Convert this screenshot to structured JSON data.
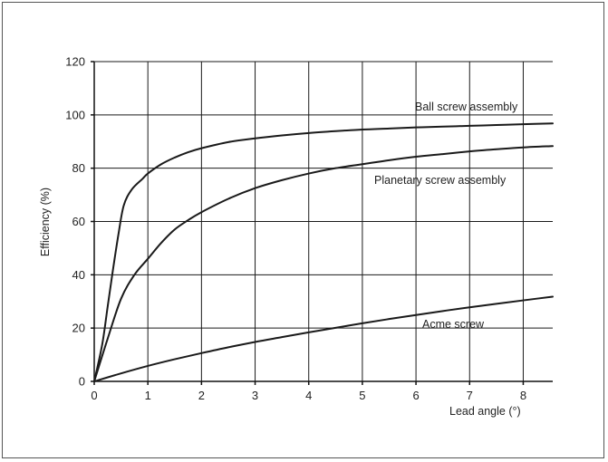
{
  "chart_data": {
    "type": "line",
    "title": "",
    "xlabel": "Lead angle (°)",
    "ylabel": "Efficiency (%)",
    "xlim": [
      0,
      8.55
    ],
    "ylim": [
      0,
      120
    ],
    "xticks": [
      0,
      1,
      2,
      3,
      4,
      5,
      6,
      7,
      8
    ],
    "yticks": [
      0,
      20,
      40,
      60,
      80,
      100,
      120
    ],
    "grid": true,
    "legend": "labels placed next to curves",
    "series": [
      {
        "name": "Ball screw assembly",
        "x": [
          0,
          0.15,
          0.25,
          0.35,
          0.45,
          0.55,
          0.7,
          0.9,
          1.0,
          1.25,
          1.5,
          1.75,
          2.0,
          2.5,
          3.0,
          3.5,
          4.0,
          4.5,
          5.0,
          5.5,
          6.0,
          6.5,
          7.0,
          7.5,
          8.0,
          8.55
        ],
        "y": [
          0,
          14,
          28,
          42,
          55,
          66,
          72,
          76,
          78,
          81.5,
          84,
          86,
          87.5,
          89.8,
          91.2,
          92.3,
          93.2,
          93.9,
          94.5,
          94.9,
          95.3,
          95.6,
          95.9,
          96.2,
          96.5,
          96.8
        ]
      },
      {
        "name": "Planetary screw assembly",
        "x": [
          0,
          0.25,
          0.5,
          0.75,
          1.0,
          1.25,
          1.5,
          1.75,
          2.0,
          2.5,
          3.0,
          3.5,
          4.0,
          4.5,
          5.0,
          5.5,
          6.0,
          6.5,
          7.0,
          7.5,
          8.0,
          8.55
        ],
        "y": [
          0,
          16,
          31,
          40,
          46,
          52,
          57,
          60.5,
          63.5,
          68.5,
          72.5,
          75.5,
          78,
          80,
          81.5,
          83,
          84.3,
          85.3,
          86.3,
          87.1,
          87.8,
          88.3
        ]
      },
      {
        "name": "Acme screw",
        "x": [
          0,
          0.5,
          1.0,
          1.5,
          2.0,
          2.5,
          3.0,
          3.5,
          4.0,
          4.5,
          5.0,
          5.5,
          6.0,
          6.5,
          7.0,
          7.5,
          8.0,
          8.55
        ],
        "y": [
          0,
          3,
          5.8,
          8.3,
          10.6,
          12.8,
          14.8,
          16.6,
          18.4,
          20.1,
          21.8,
          23.4,
          24.9,
          26.4,
          27.8,
          29.1,
          30.4,
          31.8
        ]
      }
    ]
  }
}
